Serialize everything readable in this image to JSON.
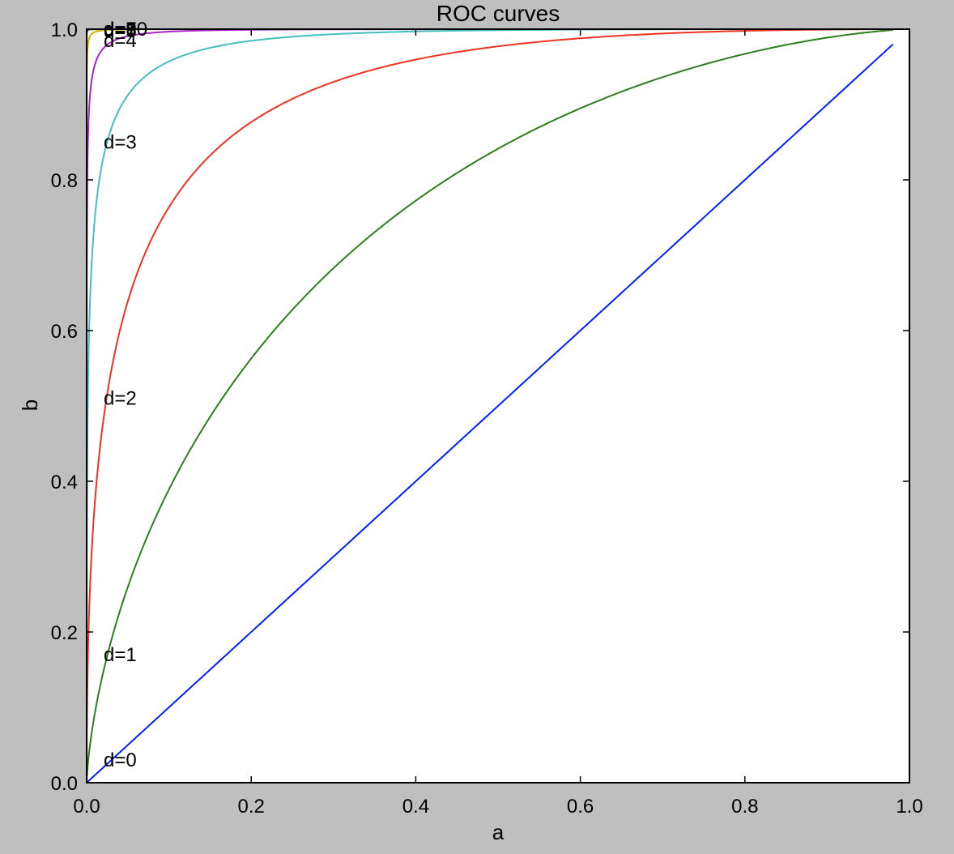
{
  "chart_data": {
    "type": "line",
    "title": "ROC curves",
    "xlabel": "a",
    "ylabel": "b",
    "xlim": [
      0.0,
      1.0
    ],
    "ylim": [
      0.0,
      1.0
    ],
    "xticks": [
      "0.0",
      "0.2",
      "0.4",
      "0.6",
      "0.8",
      "1.0"
    ],
    "yticks": [
      "0.0",
      "0.2",
      "0.4",
      "0.6",
      "0.8",
      "1.0"
    ],
    "grid": false,
    "series": [
      {
        "name": "d=0",
        "color": "#0020ff",
        "d": 0,
        "label_y": 0.03
      },
      {
        "name": "d=1",
        "color": "#2e7d1e",
        "d": 1,
        "label_y": 0.17
      },
      {
        "name": "d=2",
        "color": "#ee3322",
        "d": 2,
        "label_y": 0.51
      },
      {
        "name": "d=3",
        "color": "#44bfc0",
        "d": 3,
        "label_y": 0.85
      },
      {
        "name": "d=4",
        "color": "#aa22cc",
        "d": 4,
        "label_y": 0.985
      },
      {
        "name": "d=5",
        "color": "#c8b400",
        "d": 5,
        "label_y": 0.998
      },
      {
        "name": "d=6",
        "color": "#333333",
        "d": 6,
        "label_y": 0.999
      },
      {
        "name": "d=7",
        "color": "#0020ff",
        "d": 7,
        "label_y": 1.0
      },
      {
        "name": "d=8",
        "color": "#2e7d1e",
        "d": 8,
        "label_y": 1.0
      },
      {
        "name": "d=9",
        "color": "#ee3322",
        "d": 9,
        "label_y": 1.0
      },
      {
        "name": "d=10",
        "color": "#44bfc0",
        "d": 10,
        "label_y": 1.0
      }
    ],
    "x_max": 0.98
  }
}
